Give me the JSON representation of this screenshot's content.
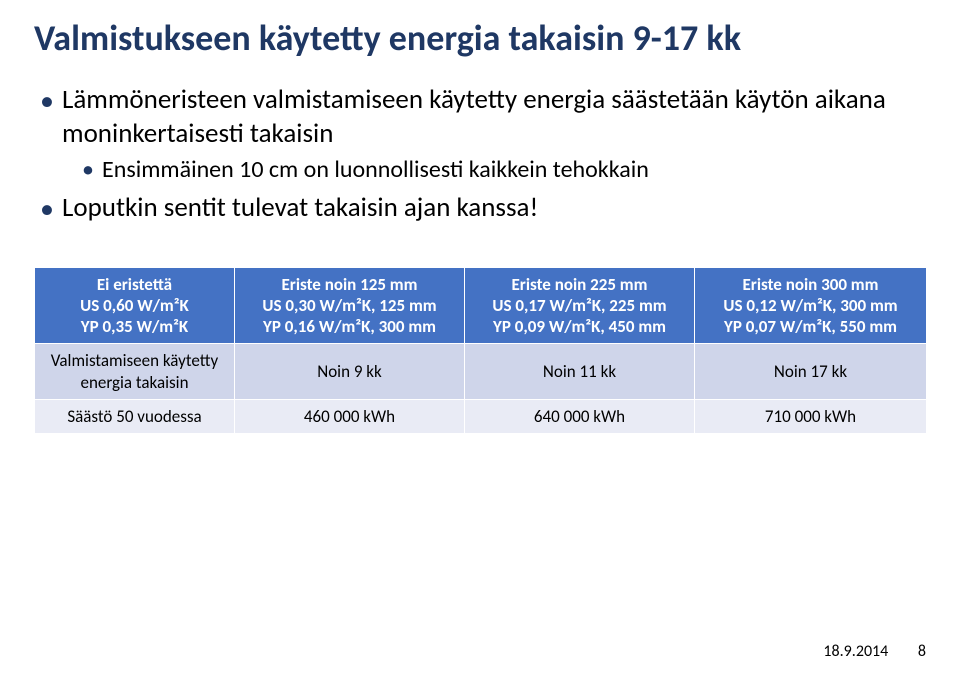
{
  "title": "Valmistukseen käytetty energia takaisin 9-17 kk",
  "bullets": {
    "b1": "Lämmöneristeen valmistamiseen käytetty energia säästetään käytön aikana moninkertaisesti takaisin",
    "b1_sub1": "Ensimmäinen 10 cm on luonnollisesti kaikkein tehokkain",
    "b2": "Loputkin sentit tulevat takaisin ajan kanssa!"
  },
  "table": {
    "headers": {
      "h0_l1": "Ei eristettä",
      "h0_l2": "US 0,60 W/m²K",
      "h0_l3": "YP 0,35 W/m²K",
      "h1_l1": "Eriste noin 125 mm",
      "h1_l2": "US 0,30 W/m²K, 125 mm",
      "h1_l3": "YP 0,16 W/m²K,  300 mm",
      "h2_l1": "Eriste noin 225 mm",
      "h2_l2": "US 0,17 W/m²K, 225 mm",
      "h2_l3": "YP 0,09 W/m²K, 450 mm",
      "h3_l1": "Eriste noin 300 mm",
      "h3_l2": "US 0,12 W/m²K, 300 mm",
      "h3_l3": "YP 0,07 W/m²K, 550 mm"
    },
    "row1": {
      "label": "Valmistamiseen käytetty energia takaisin",
      "c1": "Noin 9 kk",
      "c2": "Noin 11 kk",
      "c3": "Noin 17 kk"
    },
    "row2": {
      "label": "Säästö 50 vuodessa",
      "c1": "460 000 kWh",
      "c2": "640 000 kWh",
      "c3": "710 000 kWh"
    },
    "colors": {
      "header_bg": "#4472c4",
      "header_text": "#ffffff",
      "row1_bg": "#cfd5ea",
      "row2_bg": "#e9ebf5",
      "border": "#ffffff"
    }
  },
  "footer": {
    "date": "18.9.2014",
    "page": "8"
  }
}
